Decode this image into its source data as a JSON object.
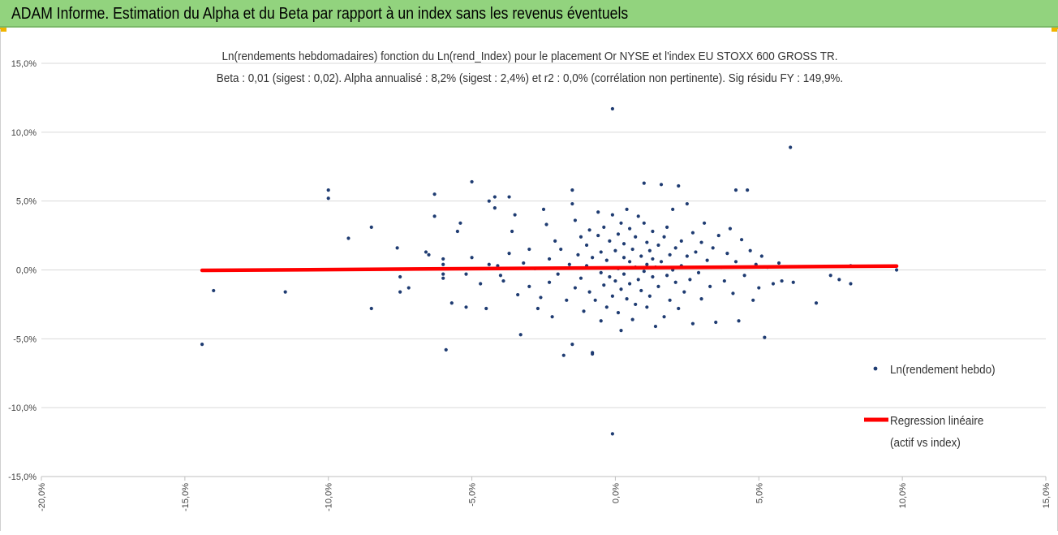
{
  "header": {
    "title": "ADAM Informe. Estimation du Alpha et du Beta par rapport à un index sans les revenus éventuels"
  },
  "colors": {
    "banner": "#92d37e",
    "points": "#1f3c72",
    "regression": "#ff0000",
    "corner_accent": "#f0b400"
  },
  "chart_data": {
    "type": "scatter",
    "title": "Ln(rendements hebdomadaires) fonction du Ln(rend_Index) pour le placement Or NYSE et l'index EU STOXX 600 GROSS TR.",
    "subtitle": "Beta : 0,01 (sigest : 0,02). Alpha annualisé : 8,2% (sigest : 2,4%) et r2 : 0,0% (corrélation non pertinente). Sig résidu FY : 149,9%.",
    "xlabel": "",
    "ylabel": "",
    "xlim": [
      -0.2,
      0.15
    ],
    "ylim": [
      -0.15,
      0.15
    ],
    "x_ticks": [
      -0.2,
      -0.15,
      -0.1,
      -0.05,
      0.0,
      0.05,
      0.1,
      0.15
    ],
    "x_tick_labels": [
      "-20,0%",
      "-15,0%",
      "-10,0%",
      "-5,0%",
      "0,0%",
      "5,0%",
      "10,0%",
      "15,0%"
    ],
    "y_ticks": [
      0.15,
      0.1,
      0.05,
      0.0,
      -0.05,
      -0.1,
      -0.15
    ],
    "y_tick_labels": [
      "15,0%",
      "10,0%",
      "5,0%",
      "0,0%",
      "-5,0%",
      "-10,0%",
      "-15,0%"
    ],
    "grid": "horizontal",
    "legend_position": "right",
    "series": [
      {
        "name": "Ln(rendement hebdo)",
        "kind": "scatter",
        "points": [
          [
            -0.144,
            -0.054
          ],
          [
            -0.14,
            -0.015
          ],
          [
            -0.115,
            -0.016
          ],
          [
            -0.1,
            0.058
          ],
          [
            -0.1,
            0.052
          ],
          [
            -0.093,
            0.023
          ],
          [
            -0.085,
            0.031
          ],
          [
            -0.085,
            -0.028
          ],
          [
            -0.076,
            0.016
          ],
          [
            -0.075,
            -0.005
          ],
          [
            -0.075,
            -0.016
          ],
          [
            -0.072,
            -0.013
          ],
          [
            -0.066,
            0.013
          ],
          [
            -0.065,
            0.011
          ],
          [
            -0.063,
            0.055
          ],
          [
            -0.063,
            0.039
          ],
          [
            -0.06,
            0.008
          ],
          [
            -0.06,
            0.004
          ],
          [
            -0.06,
            -0.006
          ],
          [
            -0.06,
            -0.003
          ],
          [
            -0.059,
            -0.058
          ],
          [
            -0.057,
            -0.024
          ],
          [
            -0.055,
            0.028
          ],
          [
            -0.054,
            0.034
          ],
          [
            -0.052,
            -0.027
          ],
          [
            -0.052,
            -0.003
          ],
          [
            -0.05,
            0.064
          ],
          [
            -0.05,
            0.009
          ],
          [
            -0.047,
            -0.01
          ],
          [
            -0.045,
            -0.028
          ],
          [
            -0.044,
            0.05
          ],
          [
            -0.044,
            0.004
          ],
          [
            -0.042,
            0.045
          ],
          [
            -0.042,
            0.053
          ],
          [
            -0.041,
            0.003
          ],
          [
            -0.04,
            -0.004
          ],
          [
            -0.039,
            -0.008
          ],
          [
            -0.037,
            0.053
          ],
          [
            -0.037,
            0.012
          ],
          [
            -0.036,
            0.028
          ],
          [
            -0.035,
            0.04
          ],
          [
            -0.034,
            -0.018
          ],
          [
            -0.033,
            -0.047
          ],
          [
            -0.032,
            0.005
          ],
          [
            -0.03,
            -0.012
          ],
          [
            -0.03,
            0.015
          ],
          [
            -0.028,
            0.001
          ],
          [
            -0.027,
            -0.028
          ],
          [
            -0.026,
            -0.02
          ],
          [
            -0.025,
            0.044
          ],
          [
            -0.024,
            0.033
          ],
          [
            -0.023,
            0.008
          ],
          [
            -0.023,
            -0.009
          ],
          [
            -0.022,
            -0.034
          ],
          [
            -0.021,
            0.021
          ],
          [
            -0.02,
            -0.003
          ],
          [
            -0.019,
            0.015
          ],
          [
            -0.018,
            -0.062
          ],
          [
            -0.017,
            -0.022
          ],
          [
            -0.016,
            0.004
          ],
          [
            -0.015,
            0.058
          ],
          [
            -0.015,
            0.048
          ],
          [
            -0.015,
            -0.054
          ],
          [
            -0.014,
            0.036
          ],
          [
            -0.014,
            -0.013
          ],
          [
            -0.013,
            0.011
          ],
          [
            -0.012,
            0.024
          ],
          [
            -0.012,
            -0.006
          ],
          [
            -0.011,
            -0.03
          ],
          [
            -0.01,
            0.018
          ],
          [
            -0.01,
            0.003
          ],
          [
            -0.009,
            -0.016
          ],
          [
            -0.009,
            0.029
          ],
          [
            -0.008,
            -0.06
          ],
          [
            -0.008,
            -0.061
          ],
          [
            -0.008,
            0.009
          ],
          [
            -0.007,
            -0.022
          ],
          [
            -0.006,
            0.042
          ],
          [
            -0.006,
            0.025
          ],
          [
            -0.005,
            0.013
          ],
          [
            -0.005,
            -0.002
          ],
          [
            -0.005,
            -0.037
          ],
          [
            -0.004,
            0.031
          ],
          [
            -0.004,
            -0.011
          ],
          [
            -0.003,
            -0.027
          ],
          [
            -0.003,
            0.007
          ],
          [
            -0.002,
            0.021
          ],
          [
            -0.002,
            -0.005
          ],
          [
            -0.001,
            0.04
          ],
          [
            -0.001,
            -0.019
          ],
          [
            -0.001,
            0.117
          ],
          [
            -0.001,
            -0.119
          ],
          [
            0.0,
            0.014
          ],
          [
            0.0,
            -0.008
          ],
          [
            0.001,
            0.001
          ],
          [
            0.001,
            0.026
          ],
          [
            0.001,
            -0.031
          ],
          [
            0.002,
            0.034
          ],
          [
            0.002,
            -0.014
          ],
          [
            0.002,
            -0.044
          ],
          [
            0.003,
            0.009
          ],
          [
            0.003,
            0.019
          ],
          [
            0.003,
            -0.003
          ],
          [
            0.004,
            -0.021
          ],
          [
            0.004,
            0.044
          ],
          [
            0.005,
            0.006
          ],
          [
            0.005,
            -0.01
          ],
          [
            0.005,
            0.03
          ],
          [
            0.006,
            -0.036
          ],
          [
            0.006,
            0.015
          ],
          [
            0.007,
            0.002
          ],
          [
            0.007,
            -0.025
          ],
          [
            0.007,
            0.024
          ],
          [
            0.008,
            0.039
          ],
          [
            0.008,
            -0.007
          ],
          [
            0.009,
            0.01
          ],
          [
            0.009,
            -0.015
          ],
          [
            0.01,
            0.063
          ],
          [
            0.01,
            -0.001
          ],
          [
            0.01,
            0.034
          ],
          [
            0.011,
            0.004
          ],
          [
            0.011,
            -0.027
          ],
          [
            0.011,
            0.02
          ],
          [
            0.012,
            -0.019
          ],
          [
            0.012,
            0.014
          ],
          [
            0.013,
            0.008
          ],
          [
            0.013,
            -0.005
          ],
          [
            0.013,
            0.028
          ],
          [
            0.014,
            -0.041
          ],
          [
            0.014,
            0.002
          ],
          [
            0.015,
            0.018
          ],
          [
            0.015,
            -0.012
          ],
          [
            0.016,
            0.062
          ],
          [
            0.016,
            0.006
          ],
          [
            0.017,
            -0.034
          ],
          [
            0.017,
            0.024
          ],
          [
            0.018,
            -0.004
          ],
          [
            0.018,
            0.031
          ],
          [
            0.019,
            0.011
          ],
          [
            0.019,
            -0.022
          ],
          [
            0.02,
            0.0
          ],
          [
            0.02,
            0.044
          ],
          [
            0.021,
            -0.009
          ],
          [
            0.021,
            0.016
          ],
          [
            0.022,
            0.061
          ],
          [
            0.022,
            -0.028
          ],
          [
            0.023,
            0.021
          ],
          [
            0.023,
            0.003
          ],
          [
            0.024,
            -0.016
          ],
          [
            0.025,
            0.048
          ],
          [
            0.025,
            0.01
          ],
          [
            0.026,
            -0.007
          ],
          [
            0.027,
            0.027
          ],
          [
            0.027,
            -0.039
          ],
          [
            0.028,
            0.013
          ],
          [
            0.029,
            -0.002
          ],
          [
            0.03,
            0.02
          ],
          [
            0.03,
            -0.021
          ],
          [
            0.031,
            0.034
          ],
          [
            0.032,
            0.007
          ],
          [
            0.033,
            -0.012
          ],
          [
            0.034,
            0.016
          ],
          [
            0.035,
            -0.038
          ],
          [
            0.036,
            0.025
          ],
          [
            0.037,
            0.002
          ],
          [
            0.038,
            -0.008
          ],
          [
            0.039,
            0.012
          ],
          [
            0.04,
            0.03
          ],
          [
            0.041,
            -0.017
          ],
          [
            0.042,
            0.006
          ],
          [
            0.042,
            0.058
          ],
          [
            0.043,
            -0.037
          ],
          [
            0.044,
            0.022
          ],
          [
            0.045,
            -0.004
          ],
          [
            0.046,
            0.058
          ],
          [
            0.047,
            0.014
          ],
          [
            0.048,
            -0.022
          ],
          [
            0.049,
            0.004
          ],
          [
            0.05,
            -0.013
          ],
          [
            0.051,
            0.01
          ],
          [
            0.052,
            -0.049
          ],
          [
            0.053,
            0.002
          ],
          [
            0.055,
            -0.01
          ],
          [
            0.057,
            0.005
          ],
          [
            0.058,
            -0.008
          ],
          [
            0.061,
            0.089
          ],
          [
            0.062,
            -0.009
          ],
          [
            0.07,
            -0.024
          ],
          [
            0.075,
            -0.004
          ],
          [
            0.078,
            -0.007
          ],
          [
            0.082,
            0.003
          ],
          [
            0.082,
            -0.01
          ],
          [
            0.098,
            0.0
          ]
        ]
      },
      {
        "name": "Regression linéaire",
        "legend_lines": [
          "Regression linéaire",
          "(actif vs index)"
        ],
        "kind": "line",
        "points": [
          [
            -0.144,
            -0.0003
          ],
          [
            0.098,
            0.0028
          ]
        ]
      }
    ]
  }
}
